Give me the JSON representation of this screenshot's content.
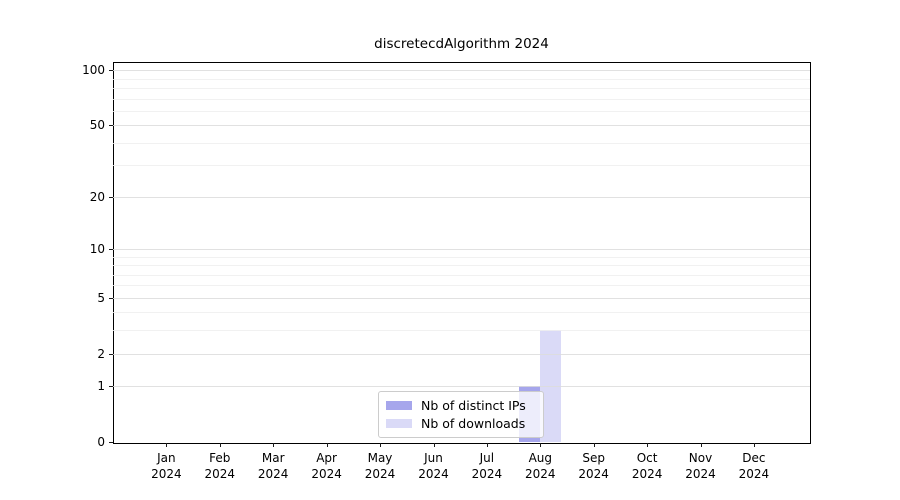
{
  "chart_data": {
    "type": "bar",
    "title": "discretecdAlgorithm 2024",
    "xlabel": "",
    "ylabel": "",
    "scale": "log1p",
    "ylim": [
      0,
      111
    ],
    "y_ticks": [
      0,
      1,
      2,
      5,
      10,
      20,
      50,
      100
    ],
    "grid": {
      "on": true,
      "major": [
        1,
        2,
        5,
        10,
        20,
        50,
        100
      ],
      "minor": [
        3,
        4,
        6,
        7,
        8,
        9,
        30,
        40,
        60,
        70,
        80,
        90
      ]
    },
    "categories": [
      [
        "Jan",
        "2024"
      ],
      [
        "Feb",
        "2024"
      ],
      [
        "Mar",
        "2024"
      ],
      [
        "Apr",
        "2024"
      ],
      [
        "May",
        "2024"
      ],
      [
        "Jun",
        "2024"
      ],
      [
        "Jul",
        "2024"
      ],
      [
        "Aug",
        "2024"
      ],
      [
        "Sep",
        "2024"
      ],
      [
        "Oct",
        "2024"
      ],
      [
        "Nov",
        "2024"
      ],
      [
        "Dec",
        "2024"
      ]
    ],
    "series": [
      {
        "name": "Nb of distinct IPs",
        "color": "#a6a6ec",
        "values": [
          0,
          0,
          0,
          0,
          0,
          0,
          0,
          1,
          0,
          0,
          0,
          0
        ]
      },
      {
        "name": "Nb of downloads",
        "color": "#dadaf7",
        "values": [
          0,
          0,
          0,
          0,
          0,
          0,
          0,
          3,
          0,
          0,
          0,
          0
        ]
      }
    ],
    "legend": {
      "position": "bottom-center-inside"
    }
  }
}
